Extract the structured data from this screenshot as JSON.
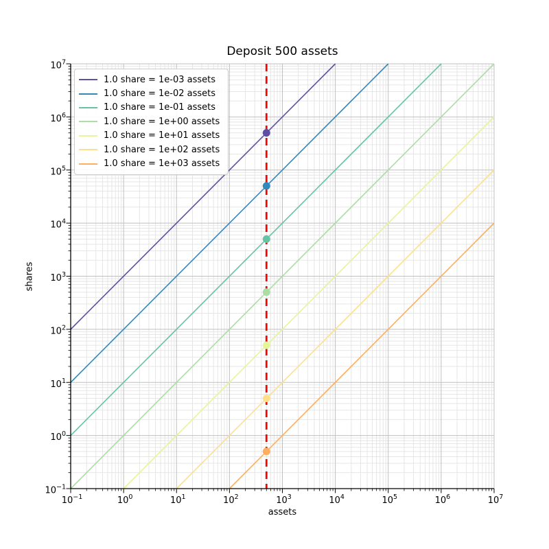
{
  "title": "Deposit 500 assets",
  "axes": {
    "xlabel": "assets",
    "ylabel": "shares",
    "tick_base": "10",
    "x_tick_exponents": [
      -1,
      0,
      1,
      2,
      3,
      4,
      5,
      6,
      7
    ],
    "y_tick_exponents": [
      -1,
      0,
      1,
      2,
      3,
      4,
      5,
      6,
      7
    ]
  },
  "chart_data": {
    "type": "line",
    "title": "Deposit 500 assets",
    "xlabel": "assets",
    "ylabel": "shares",
    "x_scale": "log",
    "y_scale": "log",
    "xlim": [
      0.1,
      10000000
    ],
    "ylim": [
      0.1,
      10000000
    ],
    "grid": "both",
    "legend_position": "upper-left",
    "deposit_vline": {
      "x": 500,
      "color": "#ff0000",
      "style": "dashed"
    },
    "series": [
      {
        "label": "1.0 share = 1e-03 assets",
        "assets_per_share": 0.001,
        "color": "#5e4fa2",
        "marker_point": {
          "x": 500,
          "y": 500000
        }
      },
      {
        "label": "1.0 share = 1e-02 assets",
        "assets_per_share": 0.01,
        "color": "#3288bd",
        "marker_point": {
          "x": 500,
          "y": 50000
        }
      },
      {
        "label": "1.0 share = 1e-01 assets",
        "assets_per_share": 0.1,
        "color": "#66c2a5",
        "marker_point": {
          "x": 500,
          "y": 5000
        }
      },
      {
        "label": "1.0 share = 1e+00 assets",
        "assets_per_share": 1,
        "color": "#abdda4",
        "marker_point": {
          "x": 500,
          "y": 500
        }
      },
      {
        "label": "1.0 share = 1e+01 assets",
        "assets_per_share": 10,
        "color": "#e6f598",
        "marker_point": {
          "x": 500,
          "y": 50
        }
      },
      {
        "label": "1.0 share = 1e+02 assets",
        "assets_per_share": 100,
        "color": "#fee08b",
        "marker_point": {
          "x": 500,
          "y": 5
        }
      },
      {
        "label": "1.0 share = 1e+03 assets",
        "assets_per_share": 1000,
        "color": "#fdae61",
        "marker_point": {
          "x": 500,
          "y": 0.5
        }
      }
    ]
  },
  "colors": {
    "grid_major": "#bfbfbf",
    "grid_minor": "#e3e3e3",
    "axis": "#000000",
    "background": "#ffffff"
  }
}
